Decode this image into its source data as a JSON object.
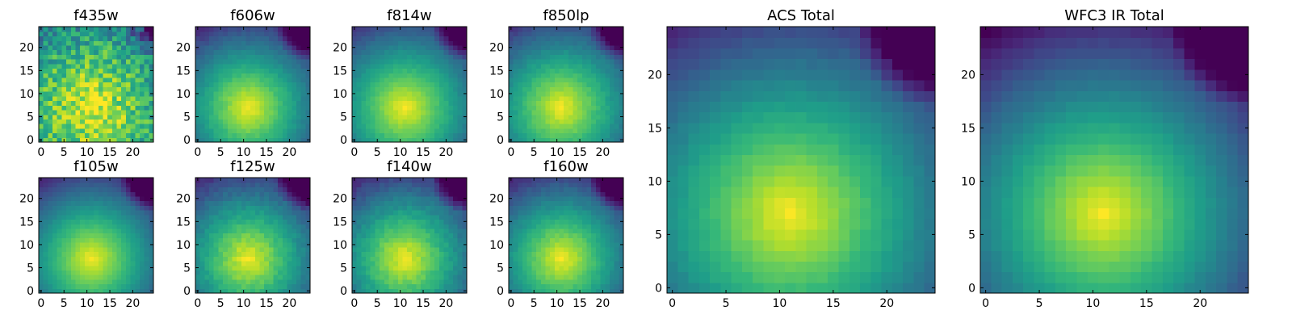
{
  "chart_data": [
    {
      "type": "heatmap",
      "title": "f435w",
      "map": "viridis",
      "xlim": [
        -0.5,
        24.5
      ],
      "ylim": [
        -0.5,
        24.5
      ],
      "xticks": [
        0,
        5,
        10,
        15,
        20
      ],
      "yticks": [
        0,
        5,
        10,
        15,
        20
      ],
      "peak": [
        11,
        7
      ],
      "spread": 0.55,
      "corner_dip": 0.3,
      "noise": 0.35,
      "seed": 7
    },
    {
      "type": "heatmap",
      "title": "f606w",
      "map": "viridis",
      "xlim": [
        -0.5,
        24.5
      ],
      "ylim": [
        -0.5,
        24.5
      ],
      "xticks": [
        0,
        5,
        10,
        15,
        20
      ],
      "yticks": [
        0,
        5,
        10,
        15,
        20
      ],
      "peak": [
        11,
        7
      ],
      "spread": 0.85,
      "corner_dip": 0.55,
      "noise": 0.05,
      "seed": 11
    },
    {
      "type": "heatmap",
      "title": "f814w",
      "map": "viridis",
      "xlim": [
        -0.5,
        24.5
      ],
      "ylim": [
        -0.5,
        24.5
      ],
      "xticks": [
        0,
        5,
        10,
        15,
        20
      ],
      "yticks": [
        0,
        5,
        10,
        15,
        20
      ],
      "peak": [
        11,
        7
      ],
      "spread": 0.8,
      "corner_dip": 0.55,
      "noise": 0.04,
      "seed": 13
    },
    {
      "type": "heatmap",
      "title": "f850lp",
      "map": "viridis",
      "xlim": [
        -0.5,
        24.5
      ],
      "ylim": [
        -0.5,
        24.5
      ],
      "xticks": [
        0,
        5,
        10,
        15,
        20
      ],
      "yticks": [
        0,
        5,
        10,
        15,
        20
      ],
      "peak": [
        11,
        7
      ],
      "spread": 0.8,
      "corner_dip": 0.55,
      "noise": 0.05,
      "seed": 17
    },
    {
      "type": "heatmap",
      "title": "f105w",
      "map": "viridis",
      "xlim": [
        -0.5,
        24.5
      ],
      "ylim": [
        -0.5,
        24.5
      ],
      "xticks": [
        0,
        5,
        10,
        15,
        20
      ],
      "yticks": [
        0,
        5,
        10,
        15,
        20
      ],
      "peak": [
        11,
        7
      ],
      "spread": 0.85,
      "corner_dip": 0.6,
      "noise": 0.03,
      "seed": 19
    },
    {
      "type": "heatmap",
      "title": "f125w",
      "map": "viridis",
      "xlim": [
        -0.5,
        24.5
      ],
      "ylim": [
        -0.5,
        24.5
      ],
      "xticks": [
        0,
        5,
        10,
        15,
        20
      ],
      "yticks": [
        0,
        5,
        10,
        15,
        20
      ],
      "peak": [
        11,
        7
      ],
      "spread": 0.85,
      "corner_dip": 0.6,
      "noise": 0.07,
      "seed": 23
    },
    {
      "type": "heatmap",
      "title": "f140w",
      "map": "viridis",
      "xlim": [
        -0.5,
        24.5
      ],
      "ylim": [
        -0.5,
        24.5
      ],
      "xticks": [
        0,
        5,
        10,
        15,
        20
      ],
      "yticks": [
        0,
        5,
        10,
        15,
        20
      ],
      "peak": [
        11,
        7
      ],
      "spread": 0.85,
      "corner_dip": 0.6,
      "noise": 0.07,
      "seed": 29
    },
    {
      "type": "heatmap",
      "title": "f160w",
      "map": "viridis",
      "xlim": [
        -0.5,
        24.5
      ],
      "ylim": [
        -0.5,
        24.5
      ],
      "xticks": [
        0,
        5,
        10,
        15,
        20
      ],
      "yticks": [
        0,
        5,
        10,
        15,
        20
      ],
      "peak": [
        11,
        7
      ],
      "spread": 0.85,
      "corner_dip": 0.6,
      "noise": 0.05,
      "seed": 31
    },
    {
      "type": "heatmap",
      "title": "ACS Total",
      "map": "viridis",
      "xlim": [
        -0.5,
        24.5
      ],
      "ylim": [
        -0.5,
        24.5
      ],
      "xticks": [
        0,
        5,
        10,
        15,
        20
      ],
      "yticks": [
        0,
        5,
        10,
        15,
        20
      ],
      "peak": [
        11,
        7
      ],
      "spread": 0.85,
      "corner_dip": 0.6,
      "noise": 0.03,
      "seed": 37
    },
    {
      "type": "heatmap",
      "title": "WFC3 IR Total",
      "map": "viridis",
      "xlim": [
        -0.5,
        24.5
      ],
      "ylim": [
        -0.5,
        24.5
      ],
      "xticks": [
        0,
        5,
        10,
        15,
        20
      ],
      "yticks": [
        0,
        5,
        10,
        15,
        20
      ],
      "peak": [
        11,
        7
      ],
      "spread": 0.95,
      "corner_dip": 0.6,
      "noise": 0.02,
      "seed": 41
    }
  ]
}
